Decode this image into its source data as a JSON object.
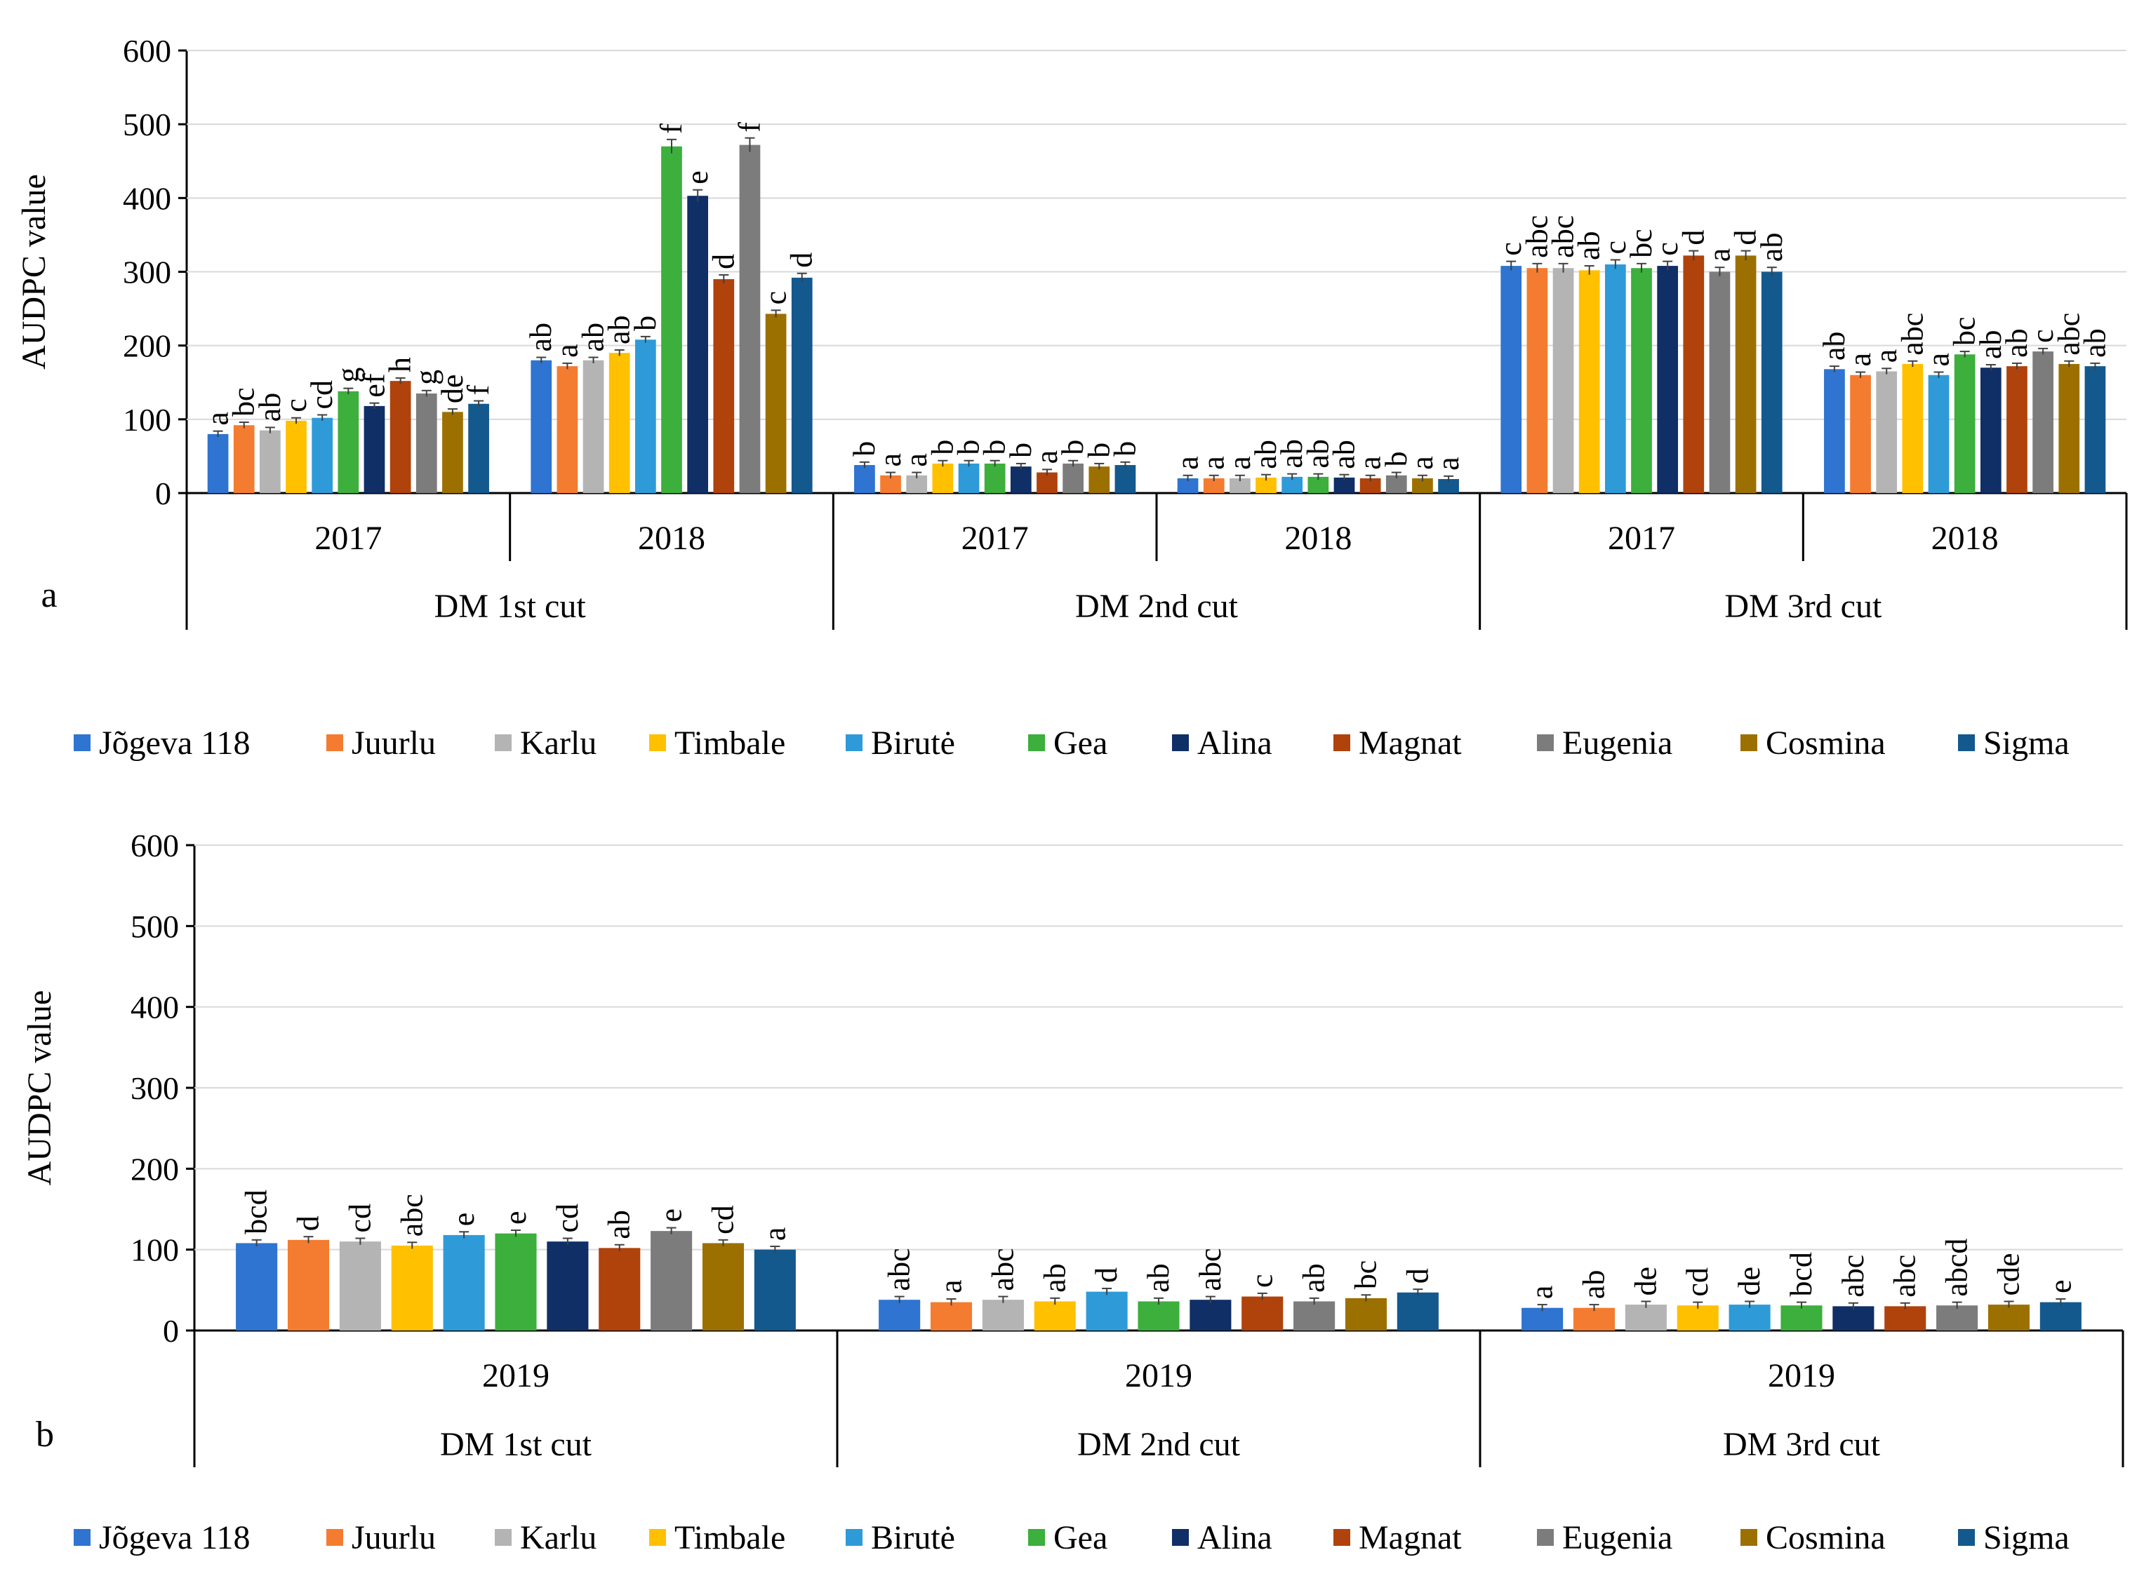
{
  "legend": [
    {
      "name": "Jõgeva 118",
      "color": "#2E74D0"
    },
    {
      "name": "Juurlu",
      "color": "#F47C30"
    },
    {
      "name": "Karlu",
      "color": "#B4B4B4"
    },
    {
      "name": "Timbale",
      "color": "#FFC000"
    },
    {
      "name": "Birutė",
      "color": "#2E9BD8"
    },
    {
      "name": "Gea",
      "color": "#3CAF3C"
    },
    {
      "name": "Alina",
      "color": "#0F2F66"
    },
    {
      "name": "Magnat",
      "color": "#B0420C"
    },
    {
      "name": "Eugenia",
      "color": "#7C7C7C"
    },
    {
      "name": "Cosmina",
      "color": "#9C7000"
    },
    {
      "name": "Sigma",
      "color": "#13598E"
    }
  ],
  "chart_data": [
    {
      "type": "bar",
      "panel_label": "a",
      "ylabel": "AUDPC value",
      "ylim": [
        0,
        600
      ],
      "yticks": [
        "0",
        "100",
        "200",
        "300",
        "400",
        "500",
        "600"
      ],
      "groups": [
        {
          "cut": "DM 1st cut",
          "year": "2017",
          "values": [
            80,
            92,
            85,
            98,
            102,
            138,
            118,
            152,
            135,
            110,
            121
          ],
          "letters": [
            "a",
            "bc",
            "ab",
            "c",
            "cd",
            "g",
            "ef",
            "h",
            "g",
            "de",
            "f"
          ]
        },
        {
          "cut": "DM 1st cut",
          "year": "2018",
          "values": [
            180,
            172,
            180,
            190,
            208,
            470,
            403,
            290,
            472,
            243,
            292
          ],
          "letters": [
            "ab",
            "a",
            "ab",
            "ab",
            "b",
            "f",
            "e",
            "d",
            "f",
            "c",
            "d"
          ]
        },
        {
          "cut": "DM 2nd cut",
          "year": "2017",
          "values": [
            38,
            24,
            24,
            40,
            40,
            40,
            36,
            28,
            40,
            36,
            38
          ],
          "letters": [
            "b",
            "a",
            "a",
            "b",
            "b",
            "b",
            "b",
            "a",
            "b",
            "b",
            "b"
          ]
        },
        {
          "cut": "DM 2nd cut",
          "year": "2018",
          "values": [
            20,
            20,
            20,
            21,
            22,
            22,
            21,
            20,
            24,
            20,
            19
          ],
          "letters": [
            "a",
            "a",
            "a",
            "ab",
            "ab",
            "ab",
            "ab",
            "a",
            "b",
            "a",
            "a"
          ]
        },
        {
          "cut": "DM 3rd cut",
          "year": "2017",
          "values": [
            308,
            305,
            305,
            302,
            310,
            305,
            308,
            322,
            300,
            322,
            300
          ],
          "letters": [
            "c",
            "abc",
            "abc",
            "ab",
            "c",
            "bc",
            "c",
            "d",
            "a",
            "d",
            "ab"
          ]
        },
        {
          "cut": "DM 3rd cut",
          "year": "2018",
          "values": [
            168,
            160,
            165,
            175,
            160,
            188,
            170,
            172,
            192,
            175,
            172
          ],
          "letters": [
            "ab",
            "a",
            "a",
            "abc",
            "a",
            "bc",
            "ab",
            "ab",
            "c",
            "abc",
            "ab"
          ]
        }
      ],
      "cut_labels": [
        "DM 1st cut",
        "DM 2nd cut",
        "DM 3rd cut"
      ]
    },
    {
      "type": "bar",
      "panel_label": "b",
      "ylabel": "AUDPC value",
      "ylim": [
        0,
        600
      ],
      "yticks": [
        "0",
        "100",
        "200",
        "300",
        "400",
        "500",
        "600"
      ],
      "groups": [
        {
          "cut": "DM 1st cut",
          "year": "2019",
          "values": [
            108,
            112,
            110,
            105,
            118,
            120,
            110,
            102,
            123,
            108,
            100
          ],
          "letters": [
            "bcd",
            "d",
            "cd",
            "abc",
            "e",
            "e",
            "cd",
            "ab",
            "e",
            "cd",
            "a"
          ]
        },
        {
          "cut": "DM 2nd cut",
          "year": "2019",
          "values": [
            38,
            35,
            38,
            36,
            48,
            36,
            38,
            42,
            36,
            40,
            47
          ],
          "letters": [
            "abc",
            "a",
            "abc",
            "ab",
            "d",
            "ab",
            "abc",
            "c",
            "ab",
            "bc",
            "d"
          ]
        },
        {
          "cut": "DM 3rd cut",
          "year": "2019",
          "values": [
            28,
            28,
            32,
            31,
            32,
            31,
            30,
            30,
            31,
            32,
            35
          ],
          "letters": [
            "a",
            "ab",
            "de",
            "cd",
            "de",
            "bcd",
            "abc",
            "abc",
            "abcd",
            "cde",
            "e"
          ]
        }
      ],
      "cut_labels": [
        "DM 1st cut",
        "DM 2nd cut",
        "DM 3rd cut"
      ]
    }
  ]
}
